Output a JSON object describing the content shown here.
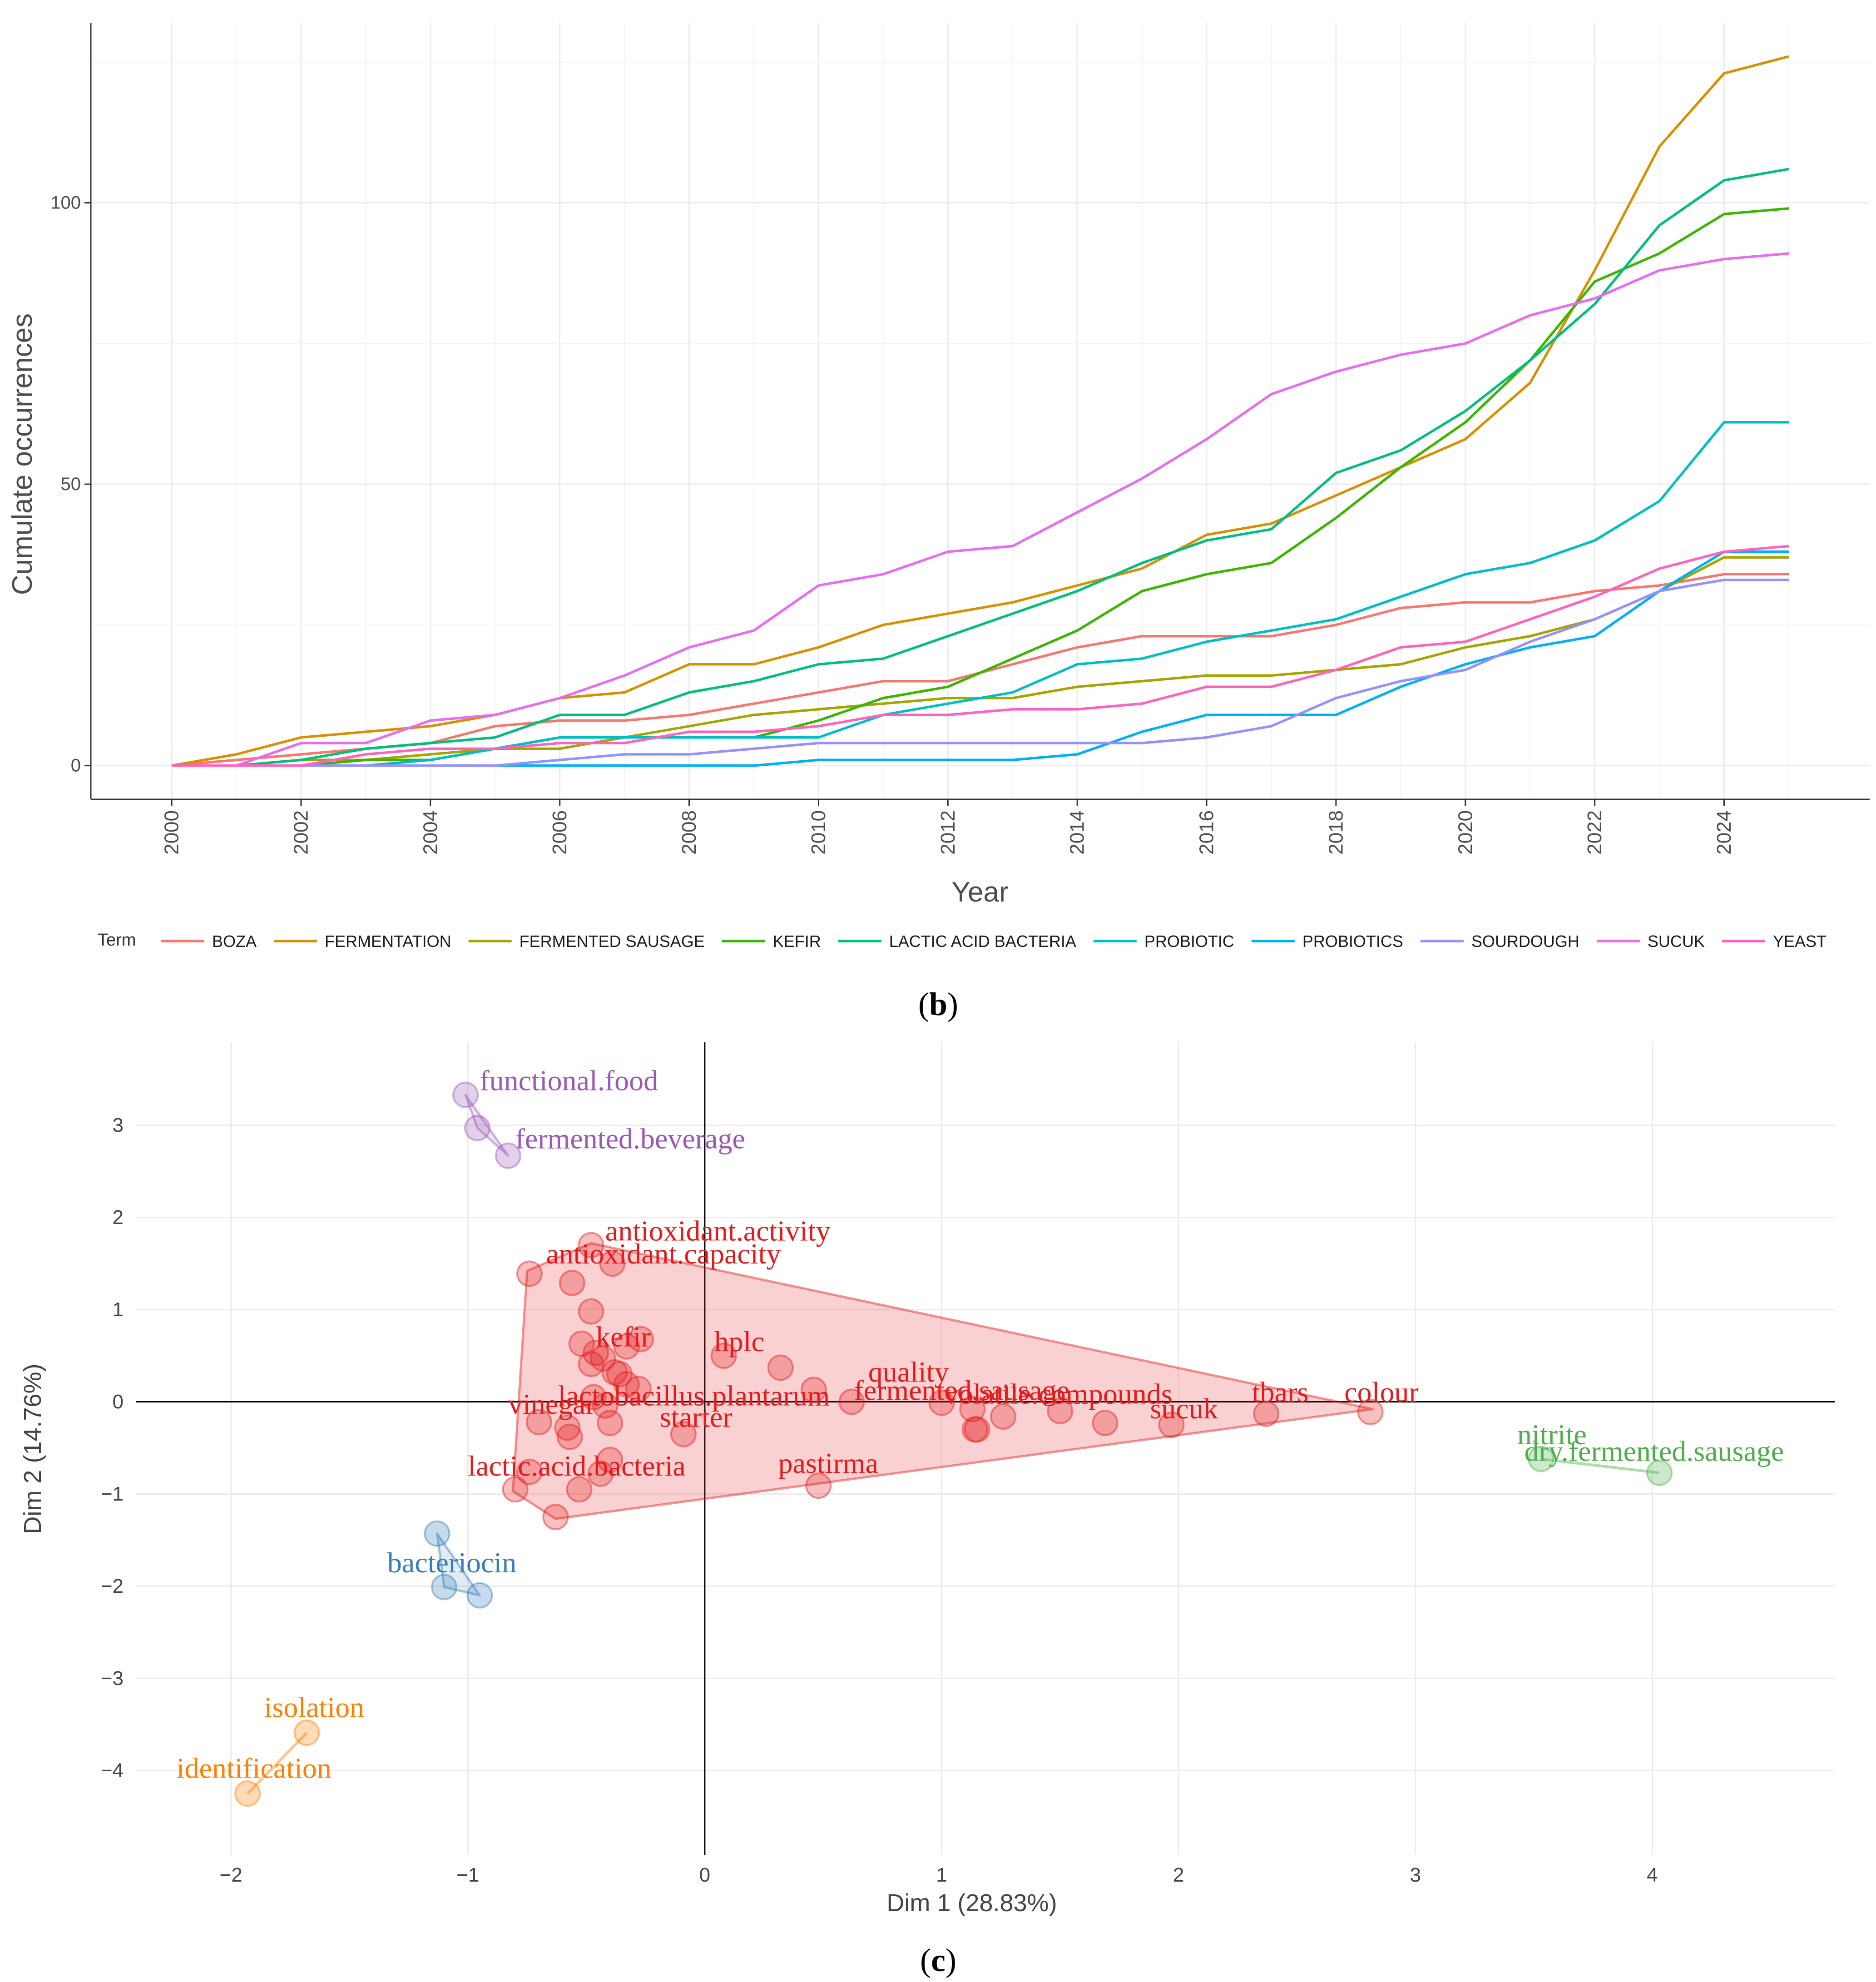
{
  "panel_b": {
    "caption_letter": "b",
    "chart_data": {
      "type": "line",
      "title": "",
      "xlabel": "Year",
      "ylabel": "Cumulate occurrences",
      "xlim": [
        2000,
        2025
      ],
      "ylim": [
        -6,
        132
      ],
      "x_ticks": [
        2000,
        2002,
        2004,
        2006,
        2008,
        2010,
        2012,
        2014,
        2016,
        2018,
        2020,
        2022,
        2024
      ],
      "y_ticks": [
        0,
        50,
        100
      ],
      "grid": true,
      "legend_title": "Term",
      "legend_position": "bottom",
      "x": [
        2000,
        2001,
        2002,
        2003,
        2004,
        2005,
        2006,
        2007,
        2008,
        2009,
        2010,
        2011,
        2012,
        2013,
        2014,
        2015,
        2016,
        2017,
        2018,
        2019,
        2020,
        2021,
        2022,
        2023,
        2024,
        2025
      ],
      "series": [
        {
          "name": "BOZA",
          "color": "#F8766D",
          "values": [
            0,
            1,
            2,
            3,
            4,
            7,
            8,
            8,
            9,
            11,
            13,
            15,
            15,
            18,
            21,
            23,
            23,
            23,
            25,
            28,
            29,
            29,
            31,
            32,
            34,
            34
          ]
        },
        {
          "name": "FERMENTATION",
          "color": "#D89000",
          "values": [
            0,
            2,
            5,
            6,
            7,
            9,
            12,
            13,
            18,
            18,
            21,
            25,
            27,
            29,
            32,
            35,
            41,
            43,
            48,
            53,
            58,
            68,
            88,
            110,
            123,
            126
          ]
        },
        {
          "name": "FERMENTED SAUSAGE",
          "color": "#A3A500",
          "values": [
            0,
            0,
            1,
            1,
            2,
            3,
            3,
            5,
            7,
            9,
            10,
            11,
            12,
            12,
            14,
            15,
            16,
            16,
            17,
            18,
            21,
            23,
            26,
            31,
            37,
            37
          ]
        },
        {
          "name": "KEFIR",
          "color": "#39B600",
          "values": [
            0,
            0,
            0,
            1,
            1,
            3,
            5,
            5,
            5,
            5,
            8,
            12,
            14,
            19,
            24,
            31,
            34,
            36,
            44,
            53,
            61,
            72,
            86,
            91,
            98,
            99
          ]
        },
        {
          "name": "LACTIC ACID BACTERIA",
          "color": "#00BF7D",
          "values": [
            0,
            0,
            1,
            3,
            4,
            5,
            9,
            9,
            13,
            15,
            18,
            19,
            23,
            27,
            31,
            36,
            40,
            42,
            52,
            56,
            63,
            72,
            82,
            96,
            104,
            106
          ]
        },
        {
          "name": "PROBIOTIC",
          "color": "#00BFC4",
          "values": [
            0,
            0,
            0,
            0,
            1,
            3,
            5,
            5,
            5,
            5,
            5,
            9,
            11,
            13,
            18,
            19,
            22,
            24,
            26,
            30,
            34,
            36,
            40,
            47,
            61,
            61
          ]
        },
        {
          "name": "PROBIOTICS",
          "color": "#00B0F6",
          "values": [
            0,
            0,
            0,
            0,
            0,
            0,
            0,
            0,
            0,
            0,
            1,
            1,
            1,
            1,
            2,
            6,
            9,
            9,
            9,
            14,
            18,
            21,
            23,
            31,
            38,
            38
          ]
        },
        {
          "name": "SOURDOUGH",
          "color": "#9590FF",
          "values": [
            0,
            0,
            0,
            0,
            0,
            0,
            1,
            2,
            2,
            3,
            4,
            4,
            4,
            4,
            4,
            4,
            5,
            7,
            12,
            15,
            17,
            22,
            26,
            31,
            33,
            33
          ]
        },
        {
          "name": "SUCUK",
          "color": "#E76BF3",
          "values": [
            0,
            0,
            4,
            4,
            8,
            9,
            12,
            16,
            21,
            24,
            32,
            34,
            38,
            39,
            45,
            51,
            58,
            66,
            70,
            73,
            75,
            80,
            83,
            88,
            90,
            91
          ]
        },
        {
          "name": "YEAST",
          "color": "#FF62BC",
          "values": [
            0,
            0,
            0,
            2,
            3,
            3,
            4,
            4,
            6,
            6,
            7,
            9,
            9,
            10,
            10,
            11,
            14,
            14,
            17,
            21,
            22,
            26,
            30,
            35,
            38,
            39
          ]
        }
      ]
    }
  },
  "panel_c": {
    "caption_letter": "c",
    "chart_data": {
      "type": "scatter",
      "title": "",
      "xlabel": "Dim 1 (28.83%)",
      "ylabel": "Dim 2 (14.76%)",
      "xlim": [
        -2.4,
        4.77
      ],
      "ylim": [
        -4.92,
        3.9
      ],
      "x_ticks": [
        -2,
        -1,
        0,
        1,
        2,
        3,
        4
      ],
      "y_ticks": [
        -4,
        -3,
        -2,
        -1,
        0,
        1,
        2,
        3
      ],
      "grid": true,
      "zero_lines": true,
      "clusters": [
        {
          "id": "purple",
          "color": "#9B59B6",
          "points": [
            [
              -1.01,
              3.33
            ],
            [
              -0.96,
              2.97
            ],
            [
              -0.83,
              2.67
            ]
          ],
          "hull": [
            [
              -1.01,
              3.33
            ],
            [
              -0.96,
              2.97
            ],
            [
              -0.83,
              2.67
            ]
          ],
          "labels": [
            {
              "text": "functional.food",
              "x": -0.95,
              "y": 3.38
            },
            {
              "text": "fermented.beverage",
              "x": -0.8,
              "y": 2.75
            }
          ]
        },
        {
          "id": "red",
          "color": "#E41A1C",
          "points": [
            [
              -0.74,
              1.39
            ],
            [
              -0.56,
              1.29
            ],
            [
              -0.48,
              1.7
            ],
            [
              -0.39,
              1.5
            ],
            [
              -0.48,
              0.98
            ],
            [
              -0.52,
              0.63
            ],
            [
              -0.46,
              0.53
            ],
            [
              -0.43,
              0.47
            ],
            [
              -0.48,
              0.41
            ],
            [
              -0.38,
              0.32
            ],
            [
              -0.36,
              0.3
            ],
            [
              -0.33,
              0.6
            ],
            [
              -0.27,
              0.68
            ],
            [
              -0.28,
              0.14
            ],
            [
              -0.33,
              0.19
            ],
            [
              -0.47,
              0.05
            ],
            [
              -0.42,
              -0.04
            ],
            [
              -0.58,
              -0.28
            ],
            [
              -0.57,
              -0.38
            ],
            [
              -0.7,
              -0.22
            ],
            [
              -0.4,
              -0.23
            ],
            [
              -0.09,
              -0.35
            ],
            [
              -0.4,
              -0.63
            ],
            [
              -0.44,
              -0.78
            ],
            [
              -0.74,
              -0.76
            ],
            [
              -0.8,
              -0.95
            ],
            [
              -0.53,
              -0.95
            ],
            [
              -0.63,
              -1.25
            ],
            [
              0.08,
              0.5
            ],
            [
              0.32,
              0.37
            ],
            [
              0.46,
              0.13
            ],
            [
              0.62,
              0.0
            ],
            [
              1.0,
              -0.01
            ],
            [
              1.13,
              -0.08
            ],
            [
              1.14,
              -0.3
            ],
            [
              1.15,
              -0.3
            ],
            [
              1.26,
              -0.16
            ],
            [
              1.5,
              -0.1
            ],
            [
              1.69,
              -0.23
            ],
            [
              1.97,
              -0.25
            ],
            [
              2.37,
              -0.13
            ],
            [
              2.81,
              -0.11
            ],
            [
              0.48,
              -0.91
            ]
          ],
          "hull": [
            [
              -0.75,
              1.42
            ],
            [
              -0.48,
              1.72
            ],
            [
              2.82,
              -0.08
            ],
            [
              -0.63,
              -1.27
            ],
            [
              -0.81,
              -0.97
            ]
          ],
          "labels": [
            {
              "text": "antioxidant.activity",
              "x": -0.42,
              "y": 1.75
            },
            {
              "text": "antioxidant.capacity",
              "x": -0.67,
              "y": 1.5
            },
            {
              "text": "kefir",
              "x": -0.46,
              "y": 0.6
            },
            {
              "text": "hplc",
              "x": 0.04,
              "y": 0.55
            },
            {
              "text": "quality",
              "x": 0.69,
              "y": 0.22
            },
            {
              "text": "fermented.sausage",
              "x": 0.63,
              "y": 0.02
            },
            {
              "text": "volatile.compounds",
              "x": 1.01,
              "y": -0.02
            },
            {
              "text": "lactobacillus.plantarum",
              "x": -0.62,
              "y": -0.04
            },
            {
              "text": "vinegar",
              "x": -0.83,
              "y": -0.13
            },
            {
              "text": "starter",
              "x": -0.19,
              "y": -0.27
            },
            {
              "text": "sucuk",
              "x": 1.88,
              "y": -0.18
            },
            {
              "text": "tbars",
              "x": 2.31,
              "y": 0.0
            },
            {
              "text": "colour",
              "x": 2.7,
              "y": 0.0
            },
            {
              "text": "lactic.acid.bacteria",
              "x": -1.0,
              "y": -0.8
            },
            {
              "text": "pastirma",
              "x": 0.31,
              "y": -0.77
            }
          ]
        },
        {
          "id": "green",
          "color": "#4DAF4A",
          "points": [
            [
              3.53,
              -0.62
            ],
            [
              4.03,
              -0.77
            ]
          ],
          "hull": [
            [
              3.53,
              -0.62
            ],
            [
              4.03,
              -0.77
            ]
          ],
          "labels": [
            {
              "text": "nitrite",
              "x": 3.43,
              "y": -0.46
            },
            {
              "text": "dry.fermented.sausage",
              "x": 3.46,
              "y": -0.64
            }
          ]
        },
        {
          "id": "blue",
          "color": "#377EB8",
          "points": [
            [
              -1.13,
              -1.43
            ],
            [
              -1.1,
              -2.01
            ],
            [
              -0.95,
              -2.1
            ]
          ],
          "hull": [
            [
              -1.13,
              -1.43
            ],
            [
              -1.1,
              -2.01
            ],
            [
              -0.95,
              -2.1
            ]
          ],
          "labels": [
            {
              "text": "bacteriocin",
              "x": -1.34,
              "y": -1.85
            }
          ]
        },
        {
          "id": "orange",
          "color": "#FF7F00",
          "points": [
            [
              -1.68,
              -3.59
            ],
            [
              -1.93,
              -4.25
            ]
          ],
          "hull": [
            [
              -1.68,
              -3.59
            ],
            [
              -1.93,
              -4.25
            ]
          ],
          "labels": [
            {
              "text": "isolation",
              "x": -1.86,
              "y": -3.42
            },
            {
              "text": "identification",
              "x": -2.23,
              "y": -4.08
            }
          ]
        }
      ]
    }
  }
}
